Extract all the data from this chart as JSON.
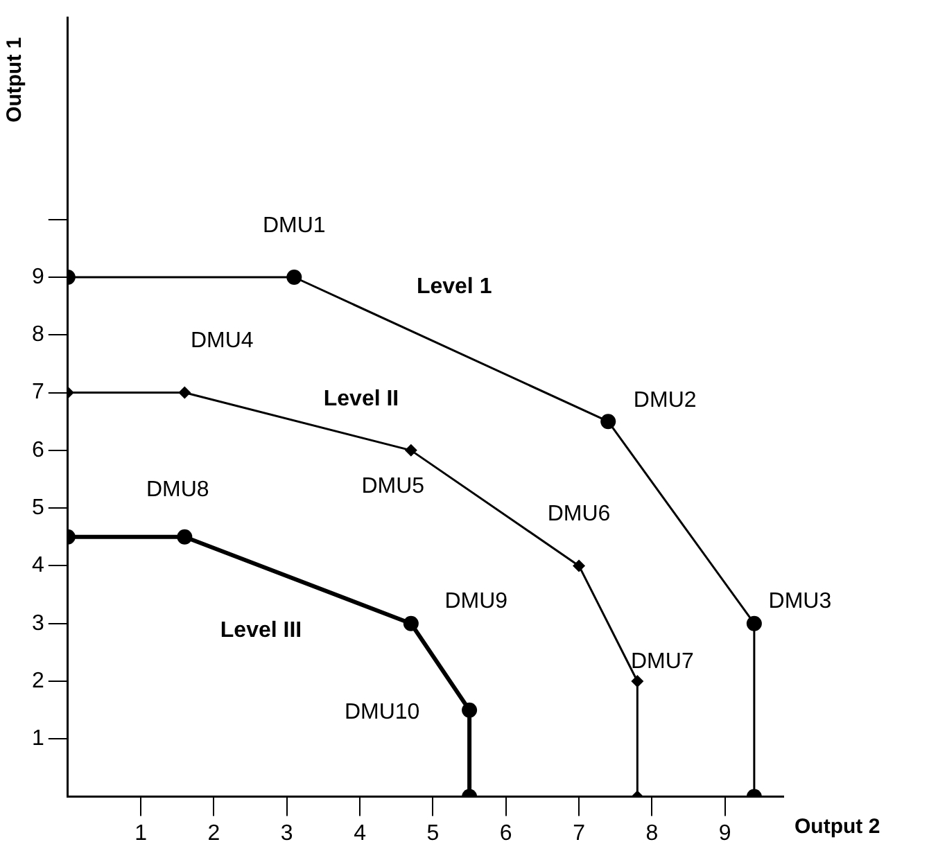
{
  "chart_data": {
    "type": "line",
    "xlabel": "Output 2",
    "ylabel": "Output 1",
    "series": [
      {
        "color": "#000000",
        "marker": "circle",
        "x": [
          0,
          3.1,
          7.4,
          9.4,
          9.4
        ],
        "values": [
          9,
          9,
          6.5,
          3,
          0
        ]
      },
      {
        "color": "#000000",
        "marker": "diamond",
        "x": [
          0,
          1.6,
          4.7,
          7.0,
          7.8,
          7.8
        ],
        "values": [
          7,
          7,
          6,
          4,
          2,
          0
        ]
      },
      {
        "color": "#000000",
        "marker": "circle",
        "x": [
          0,
          1.6,
          4.7,
          5.5,
          5.5
        ],
        "values": [
          4.5,
          4.5,
          3,
          1.5,
          0
        ]
      }
    ],
    "xlim": [
      0,
      9.8
    ],
    "xticks": [
      1,
      2,
      3,
      4,
      5,
      6,
      7,
      8,
      9
    ],
    "ylim": [
      0,
      13.5
    ],
    "yticks": [
      1,
      2,
      3,
      4,
      5,
      6,
      7,
      8,
      9,
      {
        "value": 10,
        "label": null
      }
    ],
    "annotations": [
      {
        "text": "DMU1",
        "x": 3.1,
        "y": 9
      },
      "Level 1",
      {
        "text": "DMU4",
        "x": 1.6,
        "y": 7
      },
      "Level II",
      {
        "text": "DMU2",
        "x": 7.4,
        "y": 6.5
      },
      {
        "text": "DMU8",
        "x": 1.6,
        "y": 4.5
      },
      {
        "text": "DMU5",
        "x": 4.7,
        "y": 6
      },
      {
        "text": "DMU6",
        "x": 7.0,
        "y": 4
      },
      {
        "text": "DMU9",
        "x": 4.7,
        "y": 3
      },
      "Level III",
      {
        "text": "DMU3",
        "x": 9.4,
        "y": 3
      },
      {
        "text": "DMU7",
        "x": 7.8,
        "y": 2
      },
      {
        "text": "DMU10",
        "x": 5.5,
        "y": 1.5
      }
    ],
    "grid": false,
    "legend": false
  }
}
